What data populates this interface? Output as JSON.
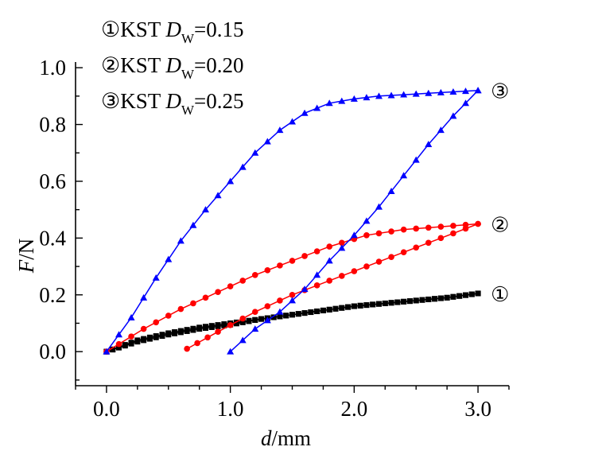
{
  "chart_data": {
    "type": "line",
    "xlabel": {
      "var": "d",
      "unit": "/mm"
    },
    "ylabel": {
      "var": "F",
      "unit": "/N"
    },
    "xlim": [
      -0.25,
      3.25
    ],
    "ylim": [
      -0.12,
      1.02
    ],
    "xticks": [
      "0.0",
      "1.0",
      "2.0",
      "3.0"
    ],
    "yticks": [
      "0.0",
      "0.2",
      "0.4",
      "0.6",
      "0.8",
      "1.0"
    ],
    "grid": false,
    "legend_position": "top-left",
    "legend": [
      {
        "num": "①",
        "pre": "KST ",
        "var": "D",
        "sub": "W",
        "post": "=0.15"
      },
      {
        "num": "②",
        "pre": "KST ",
        "var": "D",
        "sub": "W",
        "post": "=0.20"
      },
      {
        "num": "③",
        "pre": "KST ",
        "var": "D",
        "sub": "W",
        "post": "=0.25"
      }
    ],
    "series": [
      {
        "label": "①",
        "color": "#000000",
        "marker": "square",
        "loading": [
          [
            0.0,
            0.0
          ],
          [
            0.25,
            0.04
          ],
          [
            0.5,
            0.065
          ],
          [
            0.75,
            0.085
          ],
          [
            1.0,
            0.1
          ],
          [
            1.25,
            0.115
          ],
          [
            1.5,
            0.13
          ],
          [
            1.75,
            0.145
          ],
          [
            2.0,
            0.16
          ],
          [
            2.25,
            0.17
          ],
          [
            2.5,
            0.18
          ],
          [
            2.75,
            0.19
          ],
          [
            3.0,
            0.205
          ]
        ],
        "unloading": [
          [
            3.0,
            0.205
          ],
          [
            2.75,
            0.19
          ],
          [
            2.5,
            0.18
          ],
          [
            2.25,
            0.17
          ],
          [
            2.0,
            0.16
          ],
          [
            1.75,
            0.145
          ],
          [
            1.5,
            0.13
          ],
          [
            1.25,
            0.115
          ],
          [
            1.0,
            0.095
          ],
          [
            0.75,
            0.08
          ],
          [
            0.5,
            0.06
          ],
          [
            0.25,
            0.035
          ],
          [
            0.0,
            0.0
          ]
        ]
      },
      {
        "label": "②",
        "color": "#ff0000",
        "marker": "circle",
        "loading": [
          [
            0.0,
            0.0
          ],
          [
            0.3,
            0.08
          ],
          [
            0.6,
            0.15
          ],
          [
            0.9,
            0.21
          ],
          [
            1.2,
            0.27
          ],
          [
            1.5,
            0.32
          ],
          [
            1.8,
            0.37
          ],
          [
            2.1,
            0.41
          ],
          [
            2.4,
            0.43
          ],
          [
            2.7,
            0.44
          ],
          [
            3.0,
            0.45
          ]
        ],
        "unloading": [
          [
            3.0,
            0.45
          ],
          [
            2.7,
            0.4
          ],
          [
            2.4,
            0.35
          ],
          [
            2.1,
            0.3
          ],
          [
            1.8,
            0.25
          ],
          [
            1.5,
            0.2
          ],
          [
            1.2,
            0.14
          ],
          [
            0.9,
            0.07
          ],
          [
            0.65,
            0.01
          ]
        ]
      },
      {
        "label": "③",
        "color": "#0000ff",
        "marker": "triangle",
        "loading": [
          [
            0.0,
            0.0
          ],
          [
            0.2,
            0.12
          ],
          [
            0.4,
            0.26
          ],
          [
            0.6,
            0.39
          ],
          [
            0.8,
            0.5
          ],
          [
            1.0,
            0.6
          ],
          [
            1.2,
            0.7
          ],
          [
            1.4,
            0.78
          ],
          [
            1.6,
            0.84
          ],
          [
            1.8,
            0.875
          ],
          [
            2.0,
            0.89
          ],
          [
            2.2,
            0.9
          ],
          [
            2.4,
            0.905
          ],
          [
            2.6,
            0.91
          ],
          [
            2.8,
            0.915
          ],
          [
            3.0,
            0.92
          ]
        ],
        "unloading": [
          [
            3.0,
            0.92
          ],
          [
            2.8,
            0.83
          ],
          [
            2.6,
            0.73
          ],
          [
            2.4,
            0.62
          ],
          [
            2.2,
            0.51
          ],
          [
            2.0,
            0.41
          ],
          [
            1.8,
            0.32
          ],
          [
            1.6,
            0.22
          ],
          [
            1.4,
            0.14
          ],
          [
            1.2,
            0.08
          ],
          [
            1.0,
            0.0
          ]
        ]
      }
    ]
  }
}
